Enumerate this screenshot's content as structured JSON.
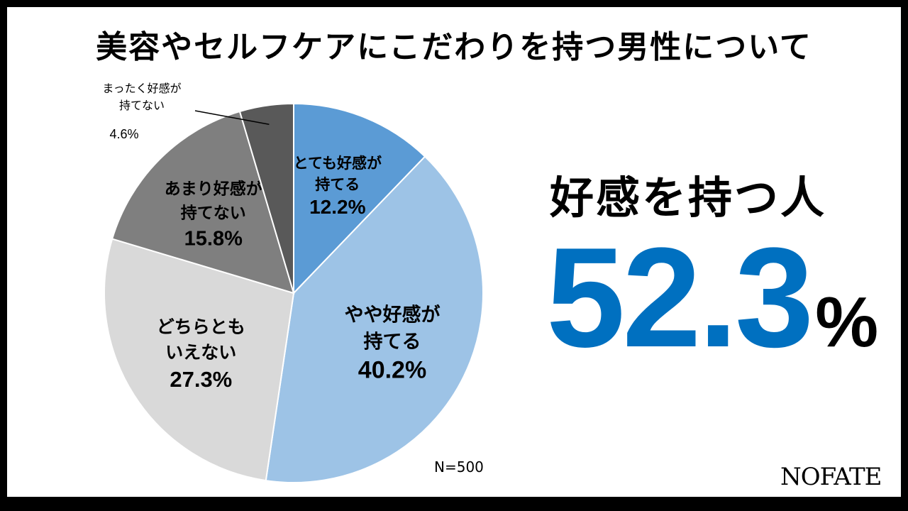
{
  "title": "美容やセルフケアにこだわりを持つ男性について",
  "headline": "好感を持つ人",
  "summary_value": "52.3",
  "summary_unit": "%",
  "sample_size": "N=500",
  "logo": "NOFATE",
  "chart_data": {
    "type": "pie",
    "start_angle_deg": 0,
    "direction": "clockwise",
    "slices": [
      {
        "label_lines": [
          "とても好感が",
          "持てる"
        ],
        "value": 12.2,
        "value_label": "12.2%",
        "color": "#5b9bd5"
      },
      {
        "label_lines": [
          "やや好感が",
          "持てる"
        ],
        "value": 40.2,
        "value_label": "40.2%",
        "color": "#9dc3e6"
      },
      {
        "label_lines": [
          "どちらとも",
          "いえない"
        ],
        "value": 27.3,
        "value_label": "27.3%",
        "color": "#d9d9d9"
      },
      {
        "label_lines": [
          "あまり好感が",
          "持てない"
        ],
        "value": 15.8,
        "value_label": "15.8%",
        "color": "#7f7f7f"
      },
      {
        "label_lines": [
          "まったく好感が",
          "持てない"
        ],
        "value": 4.6,
        "value_label": "4.6%",
        "color": "#595959"
      }
    ]
  }
}
